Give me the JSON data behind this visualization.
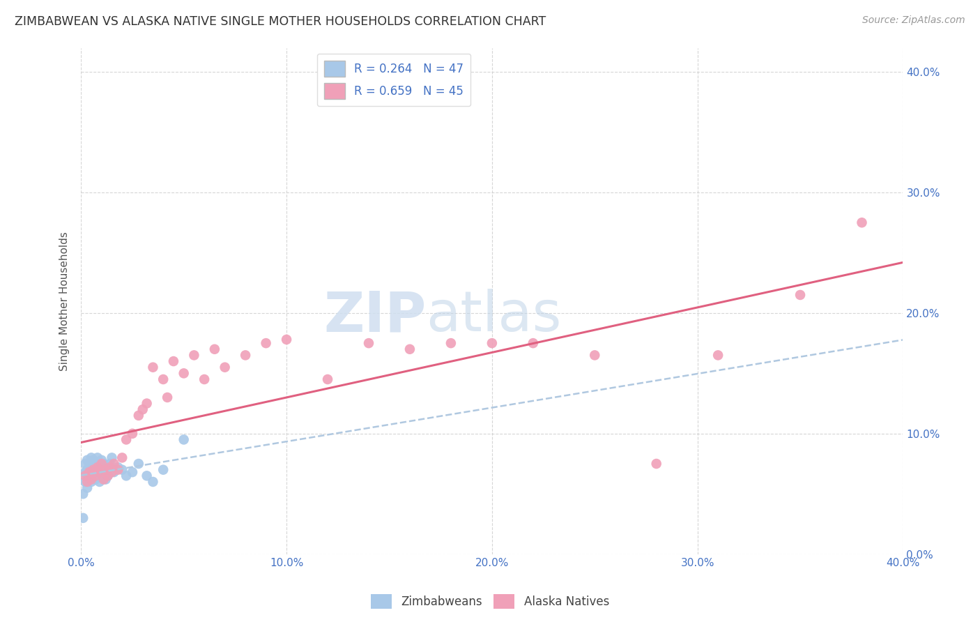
{
  "title": "ZIMBABWEAN VS ALASKA NATIVE SINGLE MOTHER HOUSEHOLDS CORRELATION CHART",
  "source": "Source: ZipAtlas.com",
  "ylabel": "Single Mother Households",
  "xlim": [
    0.0,
    0.4
  ],
  "ylim": [
    0.0,
    0.42
  ],
  "legend_R1": "R = 0.264",
  "legend_N1": "N = 47",
  "legend_R2": "R = 0.659",
  "legend_N2": "N = 45",
  "color_zimbabwean": "#a8c8e8",
  "color_alaska": "#f0a0b8",
  "color_blue_text": "#4472C4",
  "color_line_blue": "#b0c8e0",
  "color_line_pink": "#e06080",
  "zimbabwean_x": [
    0.001,
    0.001,
    0.002,
    0.002,
    0.002,
    0.003,
    0.003,
    0.003,
    0.003,
    0.004,
    0.004,
    0.004,
    0.005,
    0.005,
    0.005,
    0.005,
    0.006,
    0.006,
    0.006,
    0.007,
    0.007,
    0.007,
    0.008,
    0.008,
    0.008,
    0.009,
    0.009,
    0.01,
    0.01,
    0.01,
    0.011,
    0.011,
    0.012,
    0.012,
    0.013,
    0.014,
    0.015,
    0.016,
    0.018,
    0.02,
    0.022,
    0.025,
    0.028,
    0.032,
    0.035,
    0.04,
    0.05
  ],
  "zimbabwean_y": [
    0.03,
    0.05,
    0.06,
    0.068,
    0.075,
    0.055,
    0.065,
    0.07,
    0.078,
    0.062,
    0.07,
    0.075,
    0.06,
    0.065,
    0.07,
    0.08,
    0.065,
    0.072,
    0.078,
    0.062,
    0.068,
    0.075,
    0.065,
    0.072,
    0.08,
    0.06,
    0.075,
    0.065,
    0.07,
    0.078,
    0.068,
    0.075,
    0.062,
    0.07,
    0.065,
    0.075,
    0.08,
    0.068,
    0.072,
    0.07,
    0.065,
    0.068,
    0.075,
    0.065,
    0.06,
    0.07,
    0.095
  ],
  "alaska_x": [
    0.002,
    0.003,
    0.004,
    0.005,
    0.006,
    0.007,
    0.008,
    0.009,
    0.01,
    0.011,
    0.012,
    0.013,
    0.014,
    0.015,
    0.016,
    0.018,
    0.02,
    0.022,
    0.025,
    0.028,
    0.03,
    0.032,
    0.035,
    0.04,
    0.042,
    0.045,
    0.05,
    0.055,
    0.06,
    0.065,
    0.07,
    0.08,
    0.09,
    0.1,
    0.12,
    0.14,
    0.16,
    0.18,
    0.2,
    0.22,
    0.25,
    0.28,
    0.31,
    0.35,
    0.38
  ],
  "alaska_y": [
    0.065,
    0.06,
    0.068,
    0.062,
    0.07,
    0.065,
    0.072,
    0.068,
    0.075,
    0.062,
    0.07,
    0.065,
    0.072,
    0.068,
    0.075,
    0.07,
    0.08,
    0.095,
    0.1,
    0.115,
    0.12,
    0.125,
    0.155,
    0.145,
    0.13,
    0.16,
    0.15,
    0.165,
    0.145,
    0.17,
    0.155,
    0.165,
    0.175,
    0.178,
    0.145,
    0.175,
    0.17,
    0.175,
    0.175,
    0.175,
    0.165,
    0.075,
    0.165,
    0.215,
    0.275
  ]
}
